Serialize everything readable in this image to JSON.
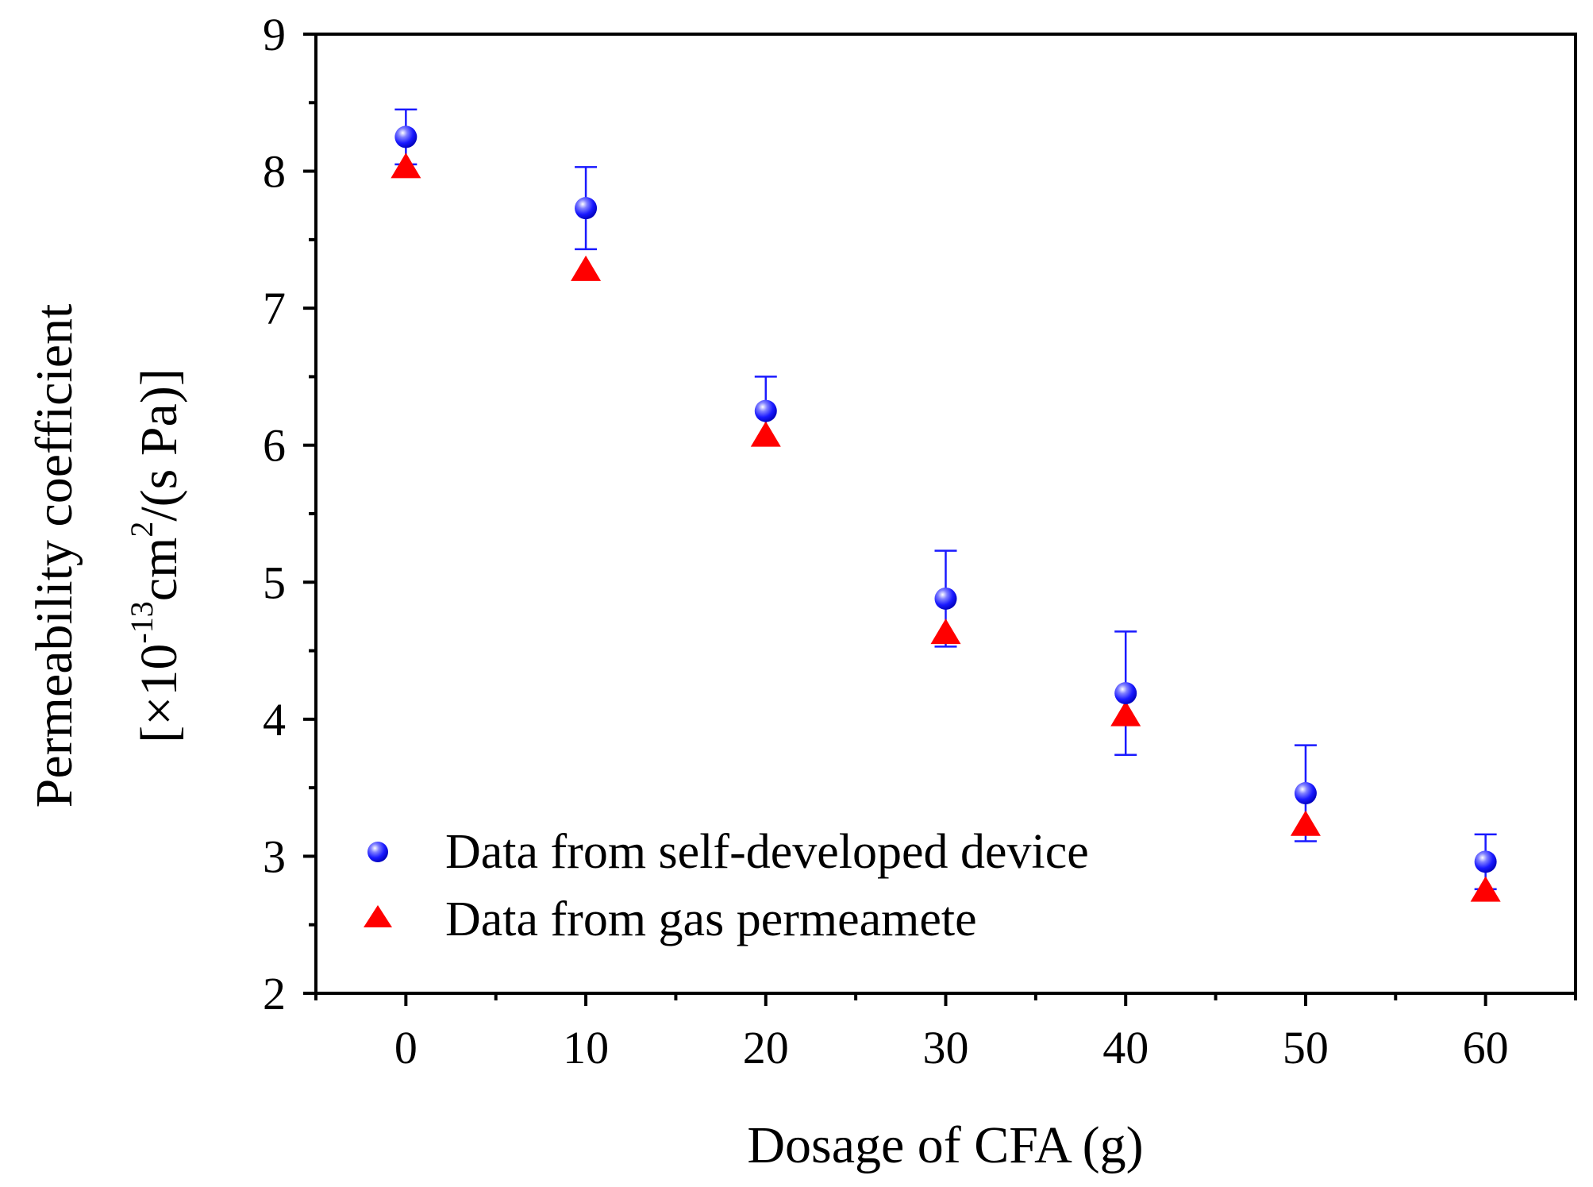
{
  "chart_data": {
    "type": "scatter",
    "title": "",
    "xlabel": "Dosage of CFA (g)",
    "ylabel": {
      "line1": "Permeability coefficient",
      "line2_prefix": "[×10",
      "line2_exp1": "-13",
      "line2_mid": "cm",
      "line2_exp2": "2",
      "line2_suffix": "/(s Pa)]"
    },
    "xlim": [
      -5,
      65
    ],
    "ylim": [
      2,
      9
    ],
    "xticks": [
      0,
      10,
      20,
      30,
      40,
      50,
      60
    ],
    "xtick_labels": [
      "0",
      "10",
      "20",
      "30",
      "40",
      "50",
      "60"
    ],
    "yticks": [
      2,
      3,
      4,
      5,
      6,
      7,
      8,
      9
    ],
    "ytick_labels": [
      "2",
      "3",
      "4",
      "5",
      "6",
      "7",
      "8",
      "9"
    ],
    "x": [
      0,
      10,
      20,
      30,
      40,
      50,
      60
    ],
    "series": [
      {
        "name": "Data from self-developed device",
        "marker": "circle",
        "color": "#1a1aff",
        "values": [
          8.25,
          7.73,
          6.25,
          4.88,
          4.19,
          3.46,
          2.96
        ],
        "err_upper": [
          8.45,
          8.03,
          6.5,
          5.23,
          4.64,
          3.81,
          3.16
        ],
        "err_lower": [
          8.05,
          7.43,
          6.0,
          4.53,
          3.74,
          3.11,
          2.76
        ]
      },
      {
        "name": "Data from gas permeamete",
        "marker": "triangle",
        "color": "#ff0000",
        "values": [
          8.03,
          7.28,
          6.07,
          4.63,
          4.03,
          3.23,
          2.75
        ]
      }
    ],
    "legend_position": "bottom-left"
  }
}
